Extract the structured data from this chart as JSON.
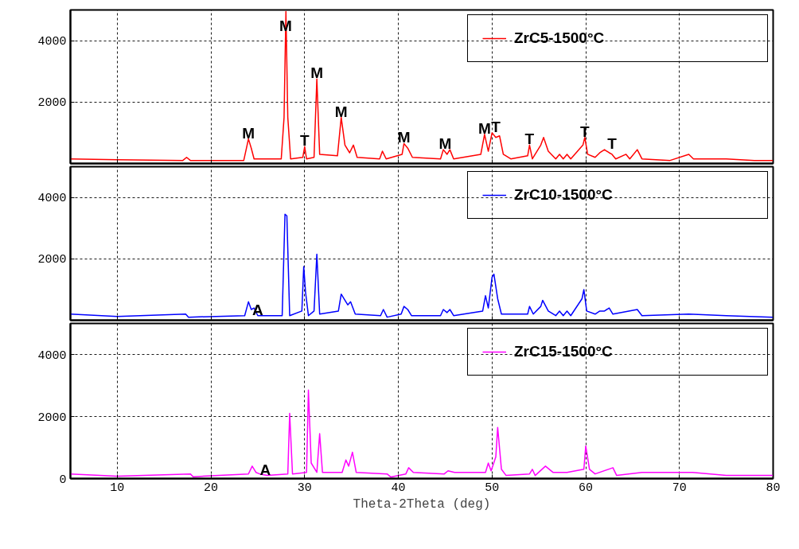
{
  "chart_data": [
    {
      "type": "line",
      "xlim": [
        5,
        80
      ],
      "xticks": [
        10,
        20,
        30,
        40,
        50,
        60,
        70,
        80
      ],
      "ylim": [
        0,
        5000
      ],
      "yticks": [
        2000,
        4000
      ],
      "grid": true,
      "legend": "top right",
      "tick_labels": "y",
      "series": [
        {
          "name": "ZrC5-1500°C",
          "color": "#ff0000",
          "x": [
            5,
            10,
            17,
            17.4,
            17.8,
            23.5,
            24,
            24.3,
            24.6,
            27.5,
            27.8,
            28.0,
            28.2,
            28.5,
            29.8,
            30.0,
            30.2,
            31,
            31.3,
            31.6,
            33.5,
            33.9,
            34.3,
            34.8,
            35.2,
            35.6,
            38,
            38.3,
            38.7,
            40.4,
            40.6,
            41,
            41.5,
            44.5,
            44.8,
            45.2,
            45.5,
            45.9,
            48.8,
            49.2,
            49.6,
            50.0,
            50.4,
            50.8,
            51.2,
            52,
            53.8,
            54,
            54.3,
            55.2,
            55.5,
            56,
            56.8,
            57.2,
            57.6,
            58,
            58.4,
            59.7,
            59.9,
            60.2,
            61,
            61.5,
            62,
            62.5,
            62.8,
            63.2,
            64.3,
            64.7,
            65.5,
            66,
            69,
            71,
            71.5,
            75,
            78,
            80
          ],
          "values": [
            150,
            120,
            100,
            200,
            100,
            100,
            800,
            500,
            150,
            150,
            1500,
            4950,
            1500,
            150,
            200,
            550,
            150,
            200,
            2750,
            300,
            250,
            1500,
            600,
            350,
            600,
            200,
            150,
            400,
            150,
            300,
            650,
            500,
            200,
            150,
            450,
            300,
            450,
            150,
            300,
            950,
            400,
            1000,
            850,
            900,
            300,
            150,
            250,
            600,
            150,
            600,
            850,
            400,
            150,
            300,
            150,
            300,
            150,
            600,
            850,
            300,
            200,
            350,
            450,
            350,
            300,
            150,
            300,
            150,
            450,
            150,
            100,
            300,
            150,
            150,
            100,
            100
          ]
        }
      ],
      "annotations": [
        {
          "text": "M",
          "x": 24,
          "y": 800
        },
        {
          "text": "M",
          "x": 27.96,
          "y": 4300
        },
        {
          "text": "T",
          "x": 30,
          "y": 550
        },
        {
          "text": "M",
          "x": 31.3,
          "y": 2750
        },
        {
          "text": "M",
          "x": 33.9,
          "y": 1500
        },
        {
          "text": "M",
          "x": 40.6,
          "y": 650
        },
        {
          "text": "M",
          "x": 45,
          "y": 450
        },
        {
          "text": "M",
          "x": 49.2,
          "y": 950
        },
        {
          "text": "T",
          "x": 50.4,
          "y": 1000
        },
        {
          "text": "T",
          "x": 54,
          "y": 600
        },
        {
          "text": "T",
          "x": 59.9,
          "y": 850
        },
        {
          "text": "T",
          "x": 62.8,
          "y": 450
        }
      ]
    },
    {
      "type": "line",
      "xlim": [
        5,
        80
      ],
      "xticks": [
        10,
        20,
        30,
        40,
        50,
        60,
        70,
        80
      ],
      "ylim": [
        0,
        5000
      ],
      "yticks": [
        2000,
        4000
      ],
      "grid": true,
      "legend": "top right",
      "tick_labels": "y",
      "series": [
        {
          "name": "ZrC10-1500°C",
          "color": "#0000ff",
          "x": [
            5,
            10,
            17.3,
            17.6,
            23.6,
            24,
            24.3,
            24.6,
            25,
            27.6,
            27.9,
            28.1,
            28.4,
            29.7,
            29.9,
            30.1,
            30.4,
            31,
            31.3,
            31.6,
            33.6,
            33.9,
            34.3,
            34.6,
            34.9,
            35.4,
            38.1,
            38.4,
            38.8,
            40.3,
            40.6,
            41,
            41.4,
            44.5,
            44.8,
            45.2,
            45.5,
            45.9,
            49,
            49.3,
            49.6,
            50,
            50.2,
            50.6,
            51,
            53.8,
            54,
            54.4,
            55.2,
            55.4,
            56,
            56.8,
            57.2,
            57.6,
            58,
            58.4,
            59.6,
            59.8,
            60.1,
            61,
            61.5,
            62,
            62.5,
            62.9,
            65.5,
            66,
            71,
            75,
            80
          ],
          "values": [
            200,
            120,
            200,
            100,
            150,
            600,
            350,
            400,
            150,
            150,
            3450,
            3400,
            150,
            300,
            1750,
            900,
            150,
            300,
            2150,
            200,
            300,
            850,
            650,
            500,
            600,
            200,
            150,
            350,
            100,
            200,
            450,
            350,
            150,
            150,
            350,
            250,
            350,
            150,
            300,
            800,
            400,
            1400,
            1500,
            700,
            200,
            200,
            450,
            200,
            450,
            650,
            300,
            150,
            300,
            150,
            300,
            150,
            700,
            1000,
            300,
            200,
            300,
            300,
            400,
            200,
            350,
            150,
            200,
            150,
            100
          ]
        }
      ],
      "annotations": [
        {
          "text": "A",
          "x": 25,
          "y": 150
        }
      ]
    },
    {
      "type": "line",
      "xlim": [
        5,
        80
      ],
      "xticks": [
        10,
        20,
        30,
        40,
        50,
        60,
        70,
        80
      ],
      "ylim": [
        0,
        5000
      ],
      "yticks": [
        0,
        2000,
        4000
      ],
      "grid": true,
      "legend": "top right",
      "xlabel": "Theta-2Theta (deg)",
      "series": [
        {
          "name": "ZrC15-1500°C",
          "color": "#ff00ff",
          "x": [
            5,
            10,
            17.8,
            18.1,
            24,
            24.4,
            24.8,
            25.2,
            26,
            28.2,
            28.4,
            28.7,
            30.2,
            30.4,
            30.7,
            31.3,
            31.6,
            31.9,
            34,
            34.4,
            34.7,
            35.1,
            35.5,
            38.8,
            39.2,
            40.8,
            41.1,
            41.6,
            44.9,
            45.3,
            46,
            49.3,
            49.6,
            49.9,
            50.4,
            50.6,
            51,
            51.5,
            54,
            54.3,
            54.6,
            55.7,
            56.5,
            58,
            59.8,
            60,
            60.4,
            61,
            62.9,
            63.3,
            66,
            71.4,
            75,
            80
          ],
          "values": [
            150,
            80,
            150,
            60,
            150,
            400,
            200,
            150,
            100,
            150,
            2100,
            150,
            200,
            2850,
            500,
            200,
            1450,
            200,
            200,
            600,
            400,
            850,
            200,
            150,
            50,
            150,
            350,
            200,
            150,
            250,
            200,
            200,
            500,
            250,
            700,
            1650,
            300,
            100,
            150,
            300,
            100,
            400,
            200,
            200,
            300,
            1050,
            300,
            150,
            350,
            100,
            200,
            200,
            100,
            100
          ]
        }
      ],
      "annotations": [
        {
          "text": "A",
          "x": 25.8,
          "y": 100
        }
      ]
    }
  ]
}
